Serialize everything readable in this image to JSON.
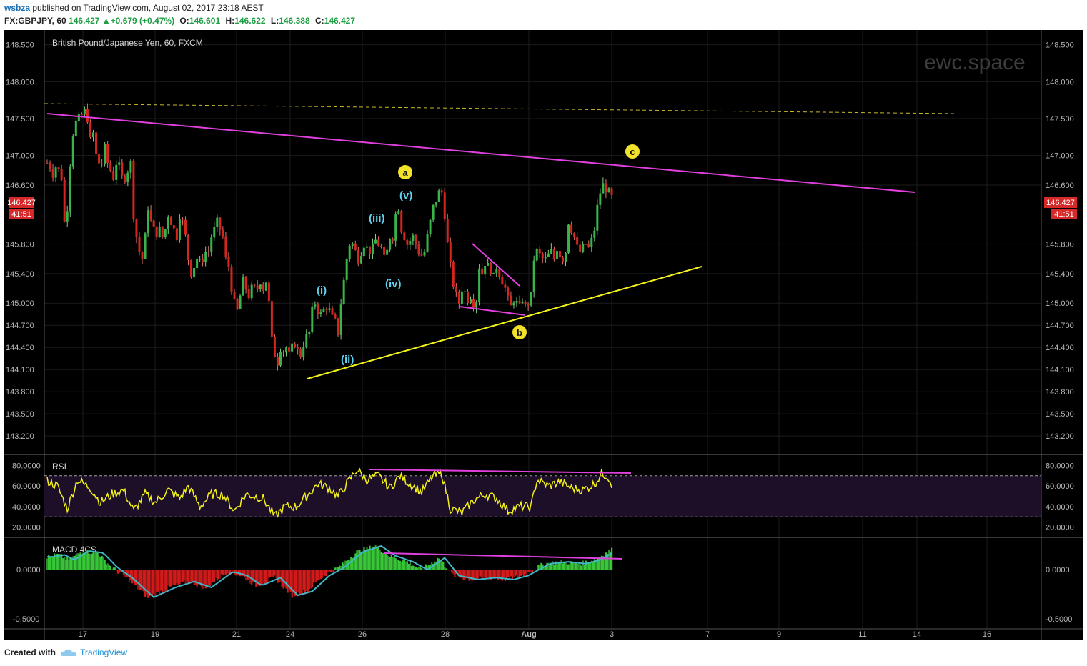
{
  "header": {
    "user": "wsbza",
    "published": "published on TradingView.com, August 02, 2017 23:18 AEST",
    "symbol": "FX:GBPJPY, 60",
    "last": "146.427",
    "change": "+0.679 (+0.47%)",
    "o_label": "O:",
    "o": "146.601",
    "h_label": "H:",
    "h": "146.622",
    "l_label": "L:",
    "l": "146.388",
    "c_label": "C:",
    "c": "146.427"
  },
  "footer": {
    "created_with": "Created with",
    "brand": "TradingView"
  },
  "watermark": "ewc.space",
  "colors": {
    "background": "#000000",
    "up": "#38b44a",
    "down": "#d2261e",
    "magenta": "#e040dd",
    "yellow": "#f2f21a",
    "cyan": "#5fd3ef",
    "price_tag": "#d62a2a"
  },
  "chart_data": [
    {
      "type": "candlestick",
      "title": "British Pound/Japanese Yen, 60, FXCM",
      "ylim": [
        142.95,
        148.7
      ],
      "price_ticks": [
        "148.500",
        "148.000",
        "147.500",
        "147.000",
        "146.600",
        "145.800",
        "145.400",
        "145.000",
        "144.700",
        "144.400",
        "144.100",
        "143.800",
        "143.500",
        "143.200"
      ],
      "last_price_label": "146.427",
      "countdown": "41:51",
      "x_ticks": [
        "17",
        "19",
        "21",
        "24",
        "26",
        "28",
        "Aug",
        "3",
        "7",
        "9",
        "11",
        "14",
        "16"
      ],
      "close_path": [
        [
          0,
          146.9
        ],
        [
          4,
          146.85
        ],
        [
          8,
          146.75
        ],
        [
          12,
          146.85
        ],
        [
          16,
          146.8
        ],
        [
          20,
          146.7
        ],
        [
          24,
          146.1
        ],
        [
          28,
          146.3
        ],
        [
          32,
          146.9
        ],
        [
          36,
          147.3
        ],
        [
          40,
          147.45
        ],
        [
          44,
          147.5
        ],
        [
          48,
          147.55
        ],
        [
          52,
          147.6
        ],
        [
          56,
          147.5
        ],
        [
          60,
          147.2
        ],
        [
          64,
          147.3
        ],
        [
          68,
          147.0
        ],
        [
          72,
          146.9
        ],
        [
          76,
          146.9
        ],
        [
          80,
          147.1
        ],
        [
          84,
          146.9
        ],
        [
          88,
          146.8
        ],
        [
          92,
          146.7
        ],
        [
          96,
          146.9
        ],
        [
          100,
          146.85
        ],
        [
          104,
          146.7
        ],
        [
          108,
          146.7
        ],
        [
          112,
          146.8
        ],
        [
          116,
          146.9
        ],
        [
          120,
          146.2
        ],
        [
          124,
          145.9
        ],
        [
          128,
          145.7
        ],
        [
          132,
          145.6
        ],
        [
          136,
          145.9
        ],
        [
          140,
          146.3
        ],
        [
          144,
          146.1
        ],
        [
          148,
          146.0
        ],
        [
          152,
          145.95
        ],
        [
          156,
          146.0
        ],
        [
          160,
          145.9
        ],
        [
          164,
          146.0
        ],
        [
          168,
          146.2
        ],
        [
          172,
          146.1
        ],
        [
          176,
          146.0
        ],
        [
          180,
          145.9
        ],
        [
          184,
          146.2
        ],
        [
          188,
          146.1
        ],
        [
          192,
          145.9
        ],
        [
          196,
          145.6
        ],
        [
          200,
          145.4
        ],
        [
          204,
          145.5
        ],
        [
          208,
          145.6
        ],
        [
          212,
          145.55
        ],
        [
          216,
          145.6
        ],
        [
          220,
          145.7
        ],
        [
          224,
          145.7
        ],
        [
          228,
          145.9
        ],
        [
          232,
          146.0
        ],
        [
          236,
          146.1
        ],
        [
          240,
          146.0
        ],
        [
          244,
          145.9
        ],
        [
          248,
          145.6
        ],
        [
          252,
          145.5
        ],
        [
          256,
          145.2
        ],
        [
          260,
          145.0
        ],
        [
          264,
          144.9
        ],
        [
          268,
          145.1
        ],
        [
          272,
          145.3
        ],
        [
          276,
          145.2
        ],
        [
          280,
          145.1
        ],
        [
          284,
          145.2
        ],
        [
          288,
          145.2
        ],
        [
          292,
          145.2
        ],
        [
          296,
          145.3
        ],
        [
          300,
          145.2
        ],
        [
          304,
          145.3
        ],
        [
          308,
          145.0
        ],
        [
          312,
          144.5
        ],
        [
          316,
          144.3
        ],
        [
          320,
          144.2
        ],
        [
          324,
          144.4
        ],
        [
          328,
          144.35
        ],
        [
          332,
          144.4
        ],
        [
          336,
          144.3
        ],
        [
          340,
          144.4
        ],
        [
          344,
          144.45
        ],
        [
          348,
          144.35
        ],
        [
          352,
          144.3
        ],
        [
          356,
          144.45
        ],
        [
          360,
          144.55
        ],
        [
          364,
          144.6
        ],
        [
          368,
          144.9
        ],
        [
          372,
          145.0
        ],
        [
          376,
          144.9
        ],
        [
          380,
          144.85
        ],
        [
          384,
          144.9
        ],
        [
          388,
          144.95
        ],
        [
          392,
          144.9
        ],
        [
          396,
          144.8
        ],
        [
          400,
          144.75
        ],
        [
          404,
          144.6
        ],
        [
          408,
          145.0
        ],
        [
          412,
          145.3
        ],
        [
          416,
          145.6
        ],
        [
          420,
          145.8
        ],
        [
          424,
          145.8
        ],
        [
          428,
          145.7
        ],
        [
          432,
          145.6
        ],
        [
          436,
          145.7
        ],
        [
          440,
          145.8
        ],
        [
          444,
          145.75
        ],
        [
          448,
          145.7
        ],
        [
          452,
          145.75
        ],
        [
          456,
          145.85
        ],
        [
          460,
          145.8
        ],
        [
          464,
          145.75
        ],
        [
          468,
          145.6
        ],
        [
          472,
          145.7
        ],
        [
          476,
          145.9
        ],
        [
          480,
          145.9
        ],
        [
          484,
          146.2
        ],
        [
          488,
          146.3
        ],
        [
          492,
          146.0
        ],
        [
          496,
          145.9
        ],
        [
          500,
          145.8
        ],
        [
          504,
          145.85
        ],
        [
          508,
          145.9
        ],
        [
          512,
          145.8
        ],
        [
          516,
          145.7
        ],
        [
          520,
          145.65
        ],
        [
          524,
          145.7
        ],
        [
          528,
          145.9
        ],
        [
          532,
          146.1
        ],
        [
          536,
          146.3
        ],
        [
          540,
          146.4
        ],
        [
          544,
          146.5
        ],
        [
          548,
          146.5
        ],
        [
          552,
          146.2
        ],
        [
          556,
          145.8
        ],
        [
          560,
          145.5
        ],
        [
          564,
          145.25
        ],
        [
          568,
          145.1
        ],
        [
          572,
          145.0
        ],
        [
          576,
          145.2
        ],
        [
          580,
          145.15
        ],
        [
          584,
          145.05
        ],
        [
          588,
          145.1
        ],
        [
          592,
          145.0
        ],
        [
          596,
          145.05
        ],
        [
          600,
          145.5
        ],
        [
          604,
          145.4
        ],
        [
          608,
          145.55
        ],
        [
          612,
          145.5
        ],
        [
          616,
          145.45
        ],
        [
          620,
          145.35
        ],
        [
          624,
          145.5
        ],
        [
          628,
          145.4
        ],
        [
          632,
          145.3
        ],
        [
          636,
          145.2
        ],
        [
          640,
          145.05
        ],
        [
          644,
          144.95
        ],
        [
          648,
          145.05
        ],
        [
          652,
          145.0
        ],
        [
          656,
          144.95
        ],
        [
          660,
          145.05
        ],
        [
          664,
          144.95
        ],
        [
          668,
          145.0
        ],
        [
          672,
          145.1
        ],
        [
          676,
          145.6
        ],
        [
          680,
          145.7
        ],
        [
          684,
          145.65
        ],
        [
          688,
          145.6
        ],
        [
          692,
          145.6
        ],
        [
          696,
          145.65
        ],
        [
          700,
          145.7
        ],
        [
          704,
          145.6
        ],
        [
          708,
          145.75
        ],
        [
          712,
          145.65
        ],
        [
          716,
          145.6
        ],
        [
          720,
          145.7
        ],
        [
          724,
          146.1
        ],
        [
          728,
          146.0
        ],
        [
          732,
          145.9
        ],
        [
          736,
          145.75
        ],
        [
          740,
          145.7
        ],
        [
          744,
          145.75
        ],
        [
          748,
          145.8
        ],
        [
          752,
          145.75
        ],
        [
          756,
          145.85
        ],
        [
          760,
          146.0
        ],
        [
          764,
          146.3
        ],
        [
          768,
          146.5
        ],
        [
          772,
          146.6
        ],
        [
          776,
          146.55
        ],
        [
          780,
          146.5
        ],
        [
          784,
          146.43
        ]
      ],
      "annotations": {
        "circled": [
          "a",
          "b",
          "c"
        ],
        "waves": [
          "(i)",
          "(ii)",
          "(iii)",
          "(iv)",
          "(v)"
        ]
      }
    },
    {
      "type": "line",
      "title": "RSI",
      "ylim": [
        10,
        90
      ],
      "ticks": [
        "80.0000",
        "60.0000",
        "40.0000",
        "20.0000"
      ],
      "bands": [
        30,
        70
      ],
      "keypoints": [
        [
          0,
          65
        ],
        [
          14,
          60
        ],
        [
          28,
          38
        ],
        [
          42,
          66
        ],
        [
          60,
          58
        ],
        [
          74,
          44
        ],
        [
          90,
          52
        ],
        [
          106,
          56
        ],
        [
          120,
          36
        ],
        [
          136,
          52
        ],
        [
          150,
          44
        ],
        [
          168,
          56
        ],
        [
          184,
          48
        ],
        [
          196,
          60
        ],
        [
          212,
          40
        ],
        [
          228,
          52
        ],
        [
          244,
          52
        ],
        [
          260,
          36
        ],
        [
          276,
          52
        ],
        [
          300,
          48
        ],
        [
          316,
          30
        ],
        [
          330,
          40
        ],
        [
          346,
          40
        ],
        [
          360,
          50
        ],
        [
          376,
          62
        ],
        [
          392,
          58
        ],
        [
          404,
          50
        ],
        [
          416,
          62
        ],
        [
          430,
          76
        ],
        [
          444,
          66
        ],
        [
          460,
          70
        ],
        [
          476,
          58
        ],
        [
          490,
          70
        ],
        [
          504,
          62
        ],
        [
          520,
          54
        ],
        [
          536,
          70
        ],
        [
          548,
          72
        ],
        [
          560,
          38
        ],
        [
          576,
          34
        ],
        [
          592,
          46
        ],
        [
          608,
          52
        ],
        [
          624,
          48
        ],
        [
          640,
          36
        ],
        [
          656,
          40
        ],
        [
          672,
          40
        ],
        [
          680,
          66
        ],
        [
          696,
          60
        ],
        [
          712,
          64
        ],
        [
          728,
          58
        ],
        [
          744,
          56
        ],
        [
          760,
          62
        ],
        [
          770,
          72
        ],
        [
          778,
          70
        ],
        [
          784,
          62
        ]
      ]
    },
    {
      "type": "histogram",
      "title": "MACD 4CS",
      "ylim": [
        -0.6,
        0.32
      ],
      "ticks": [
        "0.0000",
        "-0.5000"
      ],
      "signal_keypoints": [
        [
          0,
          0.13
        ],
        [
          16,
          0.15
        ],
        [
          30,
          0.1
        ],
        [
          50,
          0.19
        ],
        [
          70,
          0.17
        ],
        [
          90,
          0.02
        ],
        [
          110,
          -0.08
        ],
        [
          140,
          -0.28
        ],
        [
          170,
          -0.18
        ],
        [
          196,
          -0.12
        ],
        [
          220,
          -0.18
        ],
        [
          250,
          -0.02
        ],
        [
          270,
          -0.06
        ],
        [
          290,
          -0.16
        ],
        [
          316,
          -0.08
        ],
        [
          340,
          -0.26
        ],
        [
          360,
          -0.22
        ],
        [
          384,
          -0.06
        ],
        [
          404,
          0.02
        ],
        [
          430,
          0.18
        ],
        [
          456,
          0.24
        ],
        [
          476,
          0.14
        ],
        [
          500,
          0.08
        ],
        [
          520,
          0.0
        ],
        [
          544,
          0.12
        ],
        [
          564,
          -0.06
        ],
        [
          590,
          -0.1
        ],
        [
          616,
          -0.08
        ],
        [
          640,
          -0.1
        ],
        [
          660,
          -0.06
        ],
        [
          690,
          0.06
        ],
        [
          716,
          0.08
        ],
        [
          740,
          0.06
        ],
        [
          760,
          0.1
        ],
        [
          784,
          0.2
        ]
      ]
    }
  ]
}
